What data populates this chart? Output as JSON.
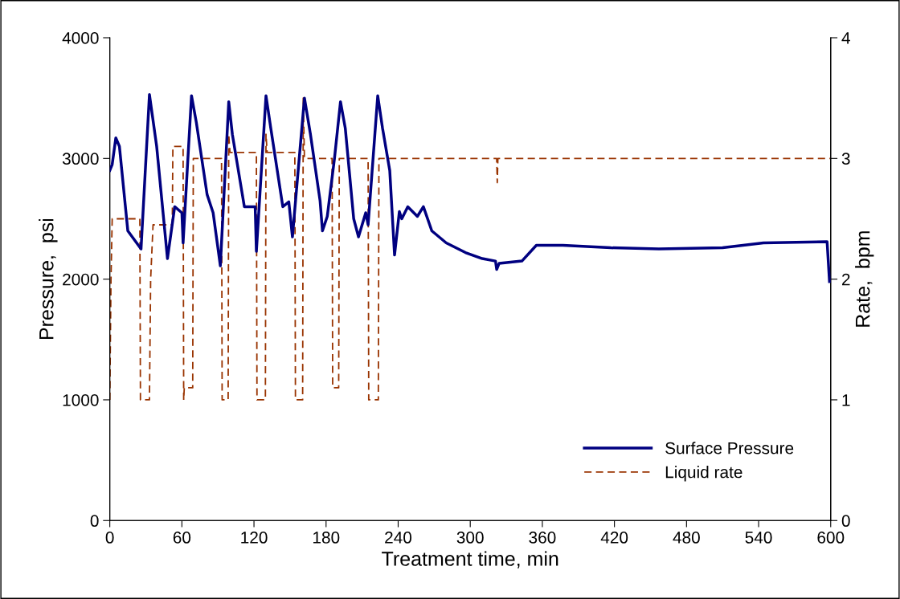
{
  "chart_data": {
    "type": "line",
    "xlabel": "Treatment time, min",
    "ylabel": "Pressure,  psi",
    "y2label": "Rate,  bpm",
    "xlim": [
      0,
      600
    ],
    "xticks": [
      0,
      60,
      120,
      180,
      240,
      300,
      360,
      420,
      480,
      540,
      600
    ],
    "ylim": [
      0,
      4000
    ],
    "yticks": [
      0,
      1000,
      2000,
      3000,
      4000
    ],
    "y2lim": [
      0,
      4
    ],
    "y2ticks": [
      0,
      1,
      2,
      3,
      4
    ],
    "grid": false,
    "legend": "bottom right",
    "marker": "none",
    "series": [
      {
        "name": "Surface Pressure",
        "color": "#000080",
        "line_style": "solid",
        "x": [
          0,
          2,
          5,
          8,
          15,
          26,
          33,
          39,
          48,
          54,
          60,
          61,
          68,
          72,
          81,
          86,
          92,
          99,
          102,
          112,
          121,
          122,
          130,
          134,
          144,
          149,
          152,
          162,
          167,
          175,
          177,
          181,
          187,
          192,
          196,
          203,
          207,
          213,
          215,
          223,
          227,
          233,
          237,
          241,
          243,
          248,
          256,
          261,
          268,
          280,
          296,
          310,
          321,
          322,
          324,
          343,
          355,
          377,
          417,
          457,
          510,
          544,
          597,
          599
        ],
        "values": [
          2900,
          2950,
          3170,
          3100,
          2400,
          2250,
          3530,
          3100,
          2170,
          2600,
          2550,
          2300,
          3520,
          3300,
          2700,
          2550,
          2110,
          3470,
          3200,
          2600,
          2600,
          2230,
          3520,
          3250,
          2600,
          2640,
          2350,
          3500,
          3200,
          2650,
          2400,
          2520,
          3000,
          3470,
          3250,
          2500,
          2350,
          2550,
          2450,
          3520,
          3250,
          2900,
          2200,
          2560,
          2500,
          2600,
          2520,
          2600,
          2400,
          2300,
          2220,
          2170,
          2150,
          2080,
          2130,
          2150,
          2280,
          2280,
          2260,
          2250,
          2260,
          2300,
          2310,
          1980
        ]
      },
      {
        "name": "Liquid rate",
        "color": "#993300",
        "line_style": "dashed",
        "axis": "y2",
        "x": [
          0,
          1,
          2,
          25,
          25.5,
          33,
          34,
          36,
          52,
          52.5,
          61,
          61.5,
          62,
          69,
          69.5,
          93,
          93.5,
          98.5,
          99,
          100,
          122,
          122.5,
          129.5,
          130,
          131,
          154,
          154.5,
          160.5,
          161,
          162,
          185,
          185.5,
          190.5,
          191,
          215,
          215.5,
          223.5,
          224,
          322,
          322.5,
          323,
          600
        ],
        "values": [
          1.0,
          2.0,
          2.5,
          2.5,
          1.0,
          1.0,
          2.0,
          2.45,
          2.45,
          3.1,
          3.1,
          1.0,
          1.1,
          1.1,
          3.0,
          3.0,
          1.0,
          1.0,
          3.2,
          3.05,
          3.05,
          1.0,
          1.0,
          3.2,
          3.05,
          3.05,
          1.0,
          1.0,
          3.5,
          3.0,
          3.0,
          1.1,
          1.1,
          3.0,
          3.0,
          1.0,
          1.0,
          3.0,
          3.0,
          2.8,
          3.0,
          3.0
        ]
      }
    ]
  }
}
